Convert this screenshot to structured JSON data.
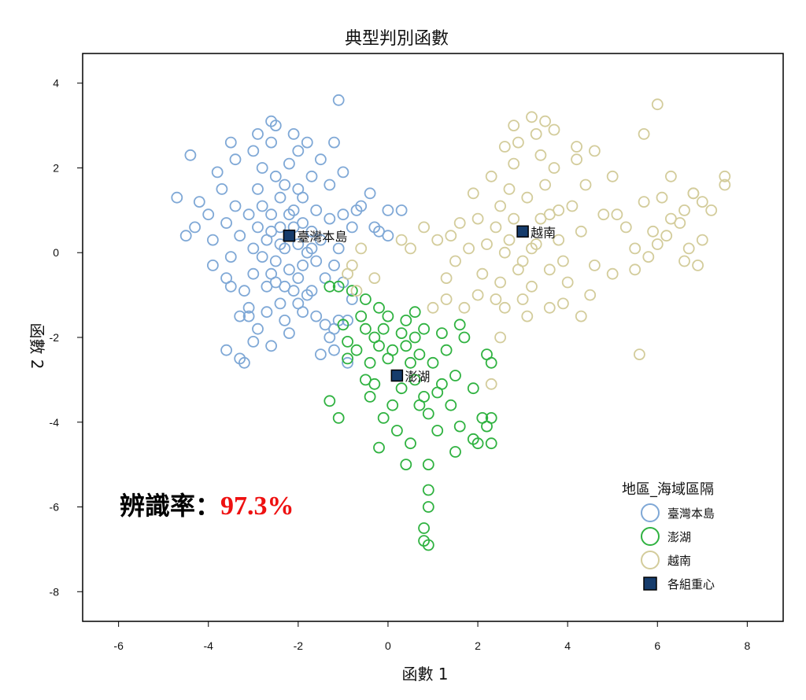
{
  "chart_data": {
    "type": "scatter",
    "title": "典型判別函數",
    "xlabel": "函數 1",
    "ylabel": "函數 2",
    "xlim": [
      -6.8,
      8.8
    ],
    "ylim": [
      -8.7,
      4.7
    ],
    "xticks": [
      -6,
      -4,
      -2,
      0,
      2,
      4,
      6,
      8
    ],
    "yticks": [
      4,
      2,
      0,
      -2,
      -4,
      -6,
      -8
    ],
    "grid": false,
    "legend": {
      "title": "地區_海域區隔",
      "placement": "bottom-right",
      "items": [
        "臺灣本島",
        "澎湖",
        "越南",
        "各組重心"
      ]
    },
    "series": [
      {
        "name": "臺灣本島",
        "color": "#7fa8d6",
        "points": [
          [
            -2.2,
            0.4
          ],
          [
            -2.4,
            0.6
          ],
          [
            -2.0,
            0.2
          ],
          [
            -2.6,
            0.9
          ],
          [
            -1.9,
            0.7
          ],
          [
            -2.3,
            0.1
          ],
          [
            -2.5,
            -0.2
          ],
          [
            -2.1,
            1.0
          ],
          [
            -2.7,
            0.3
          ],
          [
            -1.8,
            0.0
          ],
          [
            -2.2,
            -0.4
          ],
          [
            -2.9,
            0.6
          ],
          [
            -2.4,
            1.3
          ],
          [
            -1.7,
            0.5
          ],
          [
            -2.6,
            -0.5
          ],
          [
            -2.0,
            -0.6
          ],
          [
            -3.0,
            0.1
          ],
          [
            -2.3,
            1.6
          ],
          [
            -1.6,
            -0.2
          ],
          [
            -2.8,
            -0.1
          ],
          [
            -1.9,
            1.3
          ],
          [
            -2.5,
            1.8
          ],
          [
            -3.1,
            0.9
          ],
          [
            -2.1,
            -0.9
          ],
          [
            -1.5,
            0.3
          ],
          [
            -2.7,
            -0.8
          ],
          [
            -3.3,
            0.4
          ],
          [
            -2.2,
            2.1
          ],
          [
            -1.8,
            -1.0
          ],
          [
            -3.0,
            -0.5
          ],
          [
            -2.4,
            -1.2
          ],
          [
            -1.6,
            1.0
          ],
          [
            -2.9,
            1.5
          ],
          [
            -3.4,
            1.1
          ],
          [
            -2.0,
            2.4
          ],
          [
            -1.4,
            -0.6
          ],
          [
            -2.6,
            2.6
          ],
          [
            -3.2,
            -0.9
          ],
          [
            -1.9,
            -1.4
          ],
          [
            -2.3,
            -1.6
          ],
          [
            -3.5,
            -0.1
          ],
          [
            -1.3,
            0.8
          ],
          [
            -2.8,
            2.0
          ],
          [
            -3.6,
            0.7
          ],
          [
            -1.7,
            1.8
          ],
          [
            -2.5,
            3.0
          ],
          [
            -2.7,
            -1.4
          ],
          [
            -1.6,
            -1.5
          ],
          [
            -3.1,
            -1.3
          ],
          [
            -1.2,
            -0.3
          ],
          [
            -3.7,
            1.5
          ],
          [
            -2.1,
            2.8
          ],
          [
            -1.5,
            2.2
          ],
          [
            -3.0,
            2.4
          ],
          [
            -3.9,
            0.3
          ],
          [
            -1.4,
            -1.7
          ],
          [
            -2.9,
            -1.8
          ],
          [
            -3.3,
            -1.5
          ],
          [
            -1.8,
            2.6
          ],
          [
            -3.8,
            1.9
          ],
          [
            -4.0,
            0.9
          ],
          [
            -3.4,
            2.2
          ],
          [
            -2.2,
            -1.9
          ],
          [
            -1.3,
            1.6
          ],
          [
            -3.6,
            -0.6
          ],
          [
            -4.2,
            1.2
          ],
          [
            -1.1,
            0.1
          ],
          [
            -1.0,
            1.9
          ],
          [
            -1.0,
            0.9
          ],
          [
            -0.8,
            0.6
          ],
          [
            -0.7,
            1.0
          ],
          [
            -0.4,
            1.4
          ],
          [
            -0.3,
            0.6
          ],
          [
            -0.2,
            0.5
          ],
          [
            -0.6,
            1.1
          ],
          [
            0.0,
            1.0
          ],
          [
            0.3,
            1.0
          ],
          [
            0.0,
            0.4
          ],
          [
            -1.2,
            2.6
          ],
          [
            -1.1,
            3.6
          ],
          [
            -2.6,
            3.1
          ],
          [
            -2.9,
            2.8
          ],
          [
            -3.5,
            2.6
          ],
          [
            -4.4,
            2.3
          ],
          [
            -4.7,
            1.3
          ],
          [
            -4.5,
            0.4
          ],
          [
            -4.3,
            0.6
          ],
          [
            -3.9,
            -0.3
          ],
          [
            -3.5,
            -0.8
          ],
          [
            -3.1,
            -1.5
          ],
          [
            -2.6,
            -2.2
          ],
          [
            -3.3,
            -2.5
          ],
          [
            -3.6,
            -2.3
          ],
          [
            -3.0,
            -2.1
          ],
          [
            -3.2,
            -2.6
          ],
          [
            -1.2,
            -1.8
          ],
          [
            -1.3,
            -2.0
          ],
          [
            -1.2,
            -2.3
          ],
          [
            -1.1,
            -1.6
          ],
          [
            -0.9,
            -1.6
          ],
          [
            -1.0,
            -0.7
          ],
          [
            -0.8,
            -1.1
          ],
          [
            -0.9,
            -2.6
          ],
          [
            -1.5,
            -2.4
          ],
          [
            -2.0,
            -1.2
          ],
          [
            -1.7,
            -0.9
          ],
          [
            -2.2,
            0.9
          ],
          [
            -2.4,
            0.2
          ],
          [
            -2.1,
            0.6
          ],
          [
            -1.9,
            -0.3
          ],
          [
            -2.6,
            0.5
          ],
          [
            -2.3,
            -0.8
          ],
          [
            -2.0,
            1.5
          ],
          [
            -2.8,
            1.1
          ],
          [
            -1.7,
            0.1
          ],
          [
            -2.5,
            -0.7
          ]
        ]
      },
      {
        "name": "澎湖",
        "color": "#2fb240",
        "points": [
          [
            0.2,
            -2.9
          ],
          [
            0.0,
            -2.5
          ],
          [
            0.3,
            -3.2
          ],
          [
            -0.2,
            -2.2
          ],
          [
            0.5,
            -2.6
          ],
          [
            0.1,
            -3.6
          ],
          [
            -0.3,
            -2.0
          ],
          [
            0.6,
            -3.0
          ],
          [
            -0.1,
            -3.9
          ],
          [
            0.4,
            -2.2
          ],
          [
            0.8,
            -3.4
          ],
          [
            -0.5,
            -1.8
          ],
          [
            0.2,
            -4.2
          ],
          [
            0.7,
            -2.4
          ],
          [
            -0.4,
            -2.6
          ],
          [
            0.9,
            -3.8
          ],
          [
            1.0,
            -2.6
          ],
          [
            0.0,
            -1.5
          ],
          [
            -0.7,
            -2.3
          ],
          [
            0.5,
            -4.5
          ],
          [
            1.2,
            -3.1
          ],
          [
            -0.6,
            -1.5
          ],
          [
            0.3,
            -1.9
          ],
          [
            1.3,
            -2.3
          ],
          [
            -0.2,
            -4.6
          ],
          [
            1.1,
            -4.2
          ],
          [
            0.8,
            -1.8
          ],
          [
            1.5,
            -2.9
          ],
          [
            -0.9,
            -2.1
          ],
          [
            0.6,
            -1.4
          ],
          [
            1.4,
            -3.6
          ],
          [
            -0.5,
            -3.0
          ],
          [
            1.6,
            -4.1
          ],
          [
            0.4,
            -5.0
          ],
          [
            1.7,
            -2.0
          ],
          [
            -1.0,
            -1.7
          ],
          [
            1.5,
            -4.7
          ],
          [
            1.9,
            -3.2
          ],
          [
            -0.8,
            -0.9
          ],
          [
            -1.1,
            -0.8
          ],
          [
            -0.5,
            -1.1
          ],
          [
            -1.3,
            -0.8
          ],
          [
            -0.2,
            -1.3
          ],
          [
            2.2,
            -2.4
          ],
          [
            2.3,
            -2.6
          ],
          [
            2.1,
            -3.9
          ],
          [
            2.3,
            -3.9
          ],
          [
            1.6,
            -1.7
          ],
          [
            1.9,
            -4.4
          ],
          [
            2.2,
            -4.1
          ],
          [
            2.0,
            -4.5
          ],
          [
            2.3,
            -4.5
          ],
          [
            -1.3,
            -3.5
          ],
          [
            -1.1,
            -3.9
          ],
          [
            0.9,
            -5.0
          ],
          [
            0.9,
            -5.6
          ],
          [
            0.9,
            -6.0
          ],
          [
            0.8,
            -6.5
          ],
          [
            0.8,
            -6.8
          ],
          [
            0.9,
            -6.9
          ],
          [
            -0.9,
            -2.5
          ],
          [
            -0.4,
            -3.4
          ],
          [
            1.2,
            -1.9
          ],
          [
            0.4,
            -1.6
          ],
          [
            -0.1,
            -1.8
          ],
          [
            0.6,
            -2.0
          ],
          [
            0.1,
            -2.3
          ],
          [
            0.7,
            -3.6
          ],
          [
            1.1,
            -3.3
          ],
          [
            -0.3,
            -3.1
          ]
        ]
      },
      {
        "name": "越南",
        "color": "#d3cc9b",
        "points": [
          [
            3.0,
            0.5
          ],
          [
            2.8,
            0.8
          ],
          [
            3.3,
            0.2
          ],
          [
            2.6,
            0.0
          ],
          [
            3.6,
            0.9
          ],
          [
            2.4,
            0.6
          ],
          [
            3.1,
            1.3
          ],
          [
            2.9,
            -0.4
          ],
          [
            3.8,
            0.3
          ],
          [
            2.2,
            0.2
          ],
          [
            3.5,
            1.6
          ],
          [
            2.7,
            1.5
          ],
          [
            3.9,
            -0.2
          ],
          [
            2.0,
            0.8
          ],
          [
            3.2,
            -0.8
          ],
          [
            2.5,
            -0.7
          ],
          [
            4.1,
            1.1
          ],
          [
            3.7,
            2.0
          ],
          [
            2.3,
            1.8
          ],
          [
            1.8,
            0.1
          ],
          [
            4.3,
            0.5
          ],
          [
            2.1,
            -0.5
          ],
          [
            3.4,
            2.3
          ],
          [
            2.8,
            2.1
          ],
          [
            4.0,
            -0.7
          ],
          [
            1.6,
            0.7
          ],
          [
            3.0,
            -1.1
          ],
          [
            4.4,
            1.6
          ],
          [
            2.4,
            -1.1
          ],
          [
            1.5,
            -0.2
          ],
          [
            3.6,
            -1.3
          ],
          [
            4.6,
            -0.3
          ],
          [
            2.9,
            2.6
          ],
          [
            1.9,
            1.4
          ],
          [
            4.2,
            2.2
          ],
          [
            1.4,
            0.4
          ],
          [
            2.0,
            -1.0
          ],
          [
            4.8,
            0.9
          ],
          [
            3.3,
            2.8
          ],
          [
            1.3,
            -0.6
          ],
          [
            4.5,
            -1.0
          ],
          [
            1.7,
            -1.3
          ],
          [
            5.0,
            1.8
          ],
          [
            2.6,
            2.5
          ],
          [
            1.1,
            0.3
          ],
          [
            0.8,
            0.6
          ],
          [
            0.5,
            0.1
          ],
          [
            0.3,
            0.3
          ],
          [
            3.5,
            3.1
          ],
          [
            3.7,
            2.9
          ],
          [
            3.2,
            3.2
          ],
          [
            2.8,
            3.0
          ],
          [
            4.2,
            2.5
          ],
          [
            4.6,
            2.4
          ],
          [
            5.3,
            0.6
          ],
          [
            5.0,
            -0.5
          ],
          [
            5.5,
            0.1
          ],
          [
            5.1,
            0.9
          ],
          [
            5.9,
            0.5
          ],
          [
            5.7,
            1.2
          ],
          [
            6.1,
            1.3
          ],
          [
            6.3,
            0.8
          ],
          [
            6.6,
            1.0
          ],
          [
            6.8,
            1.4
          ],
          [
            7.0,
            1.2
          ],
          [
            7.2,
            1.0
          ],
          [
            7.5,
            1.8
          ],
          [
            7.5,
            1.6
          ],
          [
            6.5,
            0.7
          ],
          [
            6.2,
            0.4
          ],
          [
            6.0,
            0.2
          ],
          [
            6.7,
            0.1
          ],
          [
            7.0,
            0.3
          ],
          [
            6.6,
            -0.2
          ],
          [
            6.9,
            -0.3
          ],
          [
            5.8,
            -0.1
          ],
          [
            5.5,
            -0.4
          ],
          [
            6.0,
            3.5
          ],
          [
            5.7,
            2.8
          ],
          [
            6.3,
            1.8
          ],
          [
            6.8,
            1.4
          ],
          [
            5.6,
            -2.4
          ],
          [
            2.3,
            -3.1
          ],
          [
            2.5,
            -2.0
          ],
          [
            1.3,
            -1.1
          ],
          [
            1.0,
            -1.3
          ],
          [
            -0.6,
            0.1
          ],
          [
            -0.8,
            -0.3
          ],
          [
            -0.9,
            -0.5
          ],
          [
            -0.7,
            -0.9
          ],
          [
            -0.3,
            -0.6
          ],
          [
            2.6,
            -1.3
          ],
          [
            3.1,
            -1.5
          ],
          [
            3.9,
            -1.2
          ],
          [
            4.3,
            -1.5
          ],
          [
            3.4,
            0.8
          ],
          [
            2.7,
            0.3
          ],
          [
            3.2,
            0.1
          ],
          [
            3.8,
            1.0
          ],
          [
            2.5,
            1.1
          ],
          [
            3.0,
            -0.2
          ],
          [
            3.6,
            -0.4
          ]
        ]
      }
    ],
    "centroids": [
      {
        "label": "臺灣本島",
        "x": -2.2,
        "y": 0.4
      },
      {
        "label": "澎湖",
        "x": 0.2,
        "y": -2.9
      },
      {
        "label": "越南",
        "x": 3.0,
        "y": 0.5
      }
    ],
    "centroid_color": "#163c6c",
    "annotation": {
      "label": "辨識率：",
      "value": "97.3%",
      "value_color": "#ee1111"
    }
  }
}
